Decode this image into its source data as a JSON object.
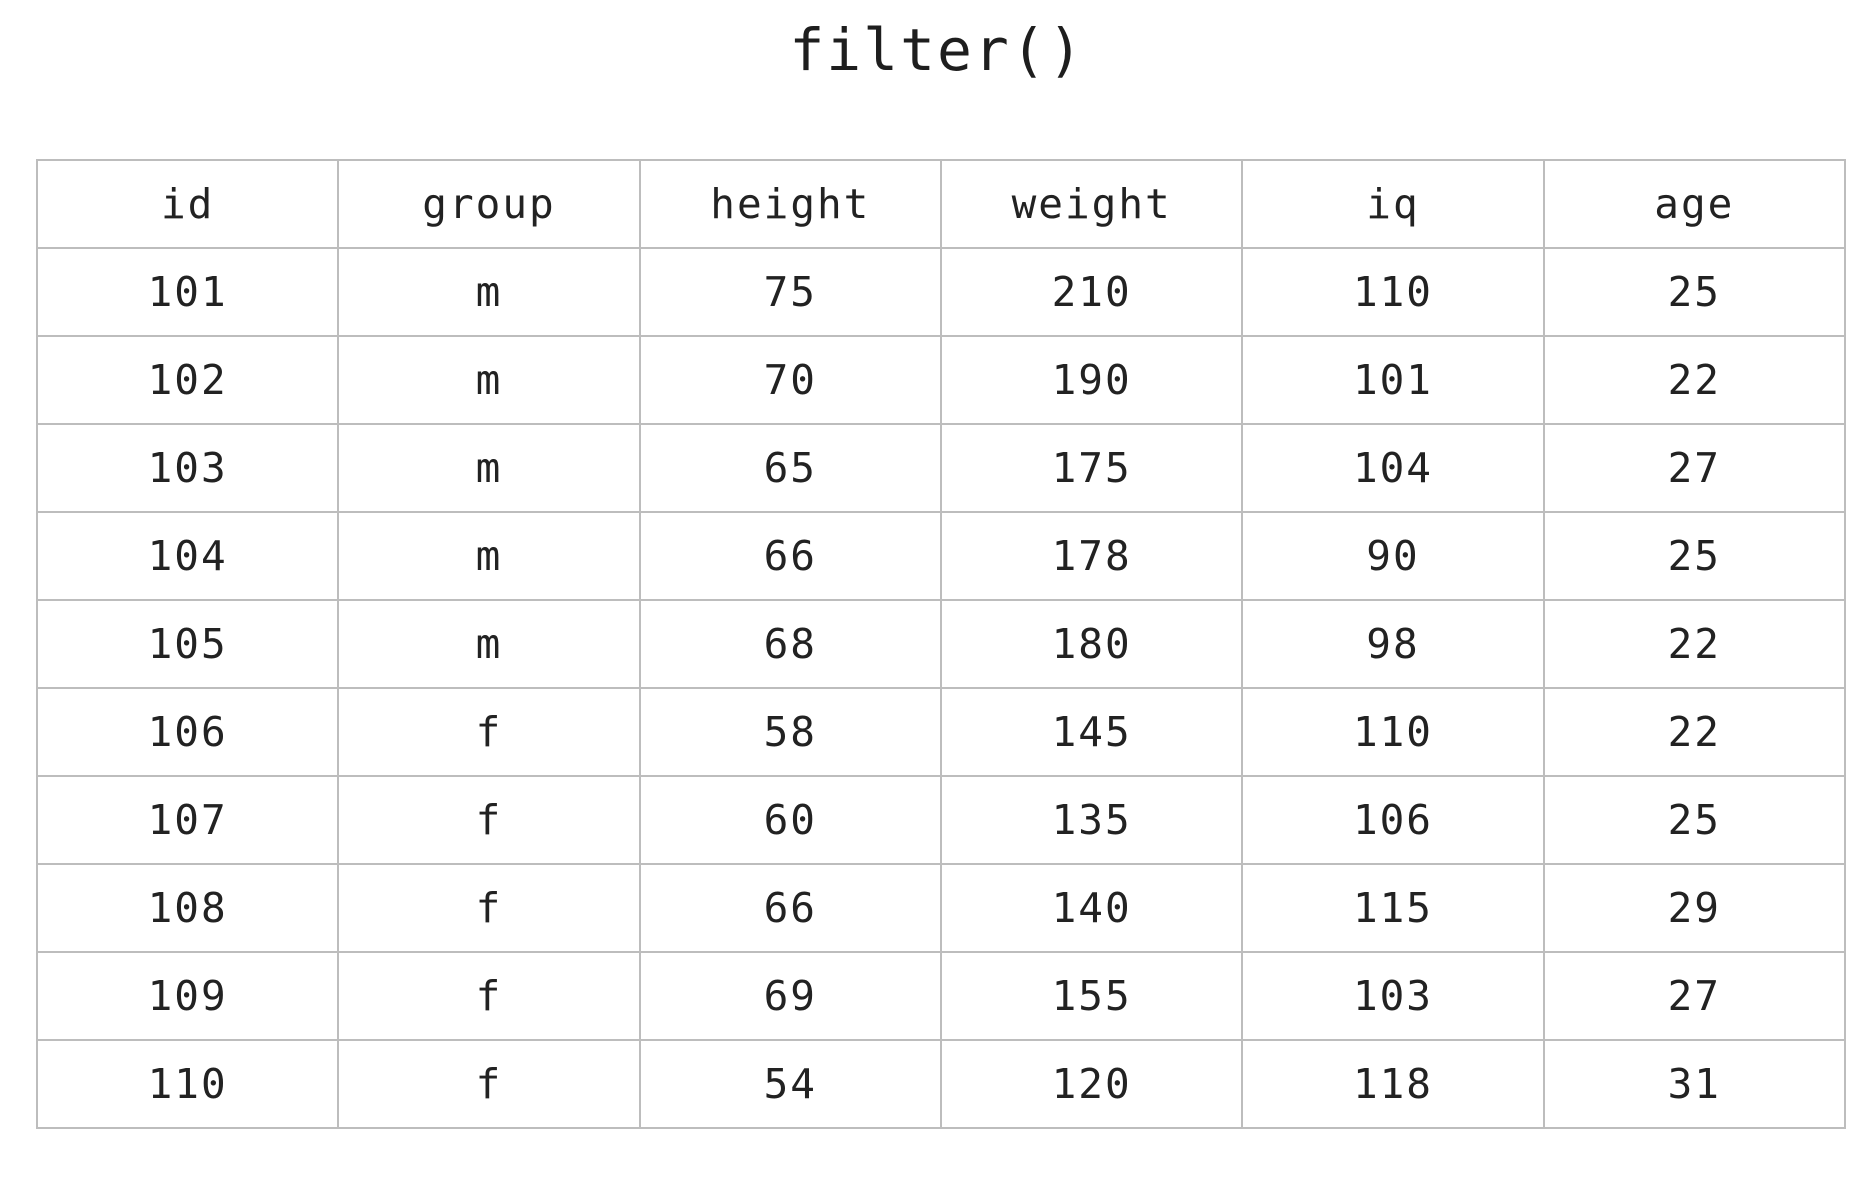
{
  "title": "filter()",
  "table": {
    "columns": [
      "id",
      "group",
      "height",
      "weight",
      "iq",
      "age"
    ],
    "rows": [
      [
        "101",
        "m",
        "75",
        "210",
        "110",
        "25"
      ],
      [
        "102",
        "m",
        "70",
        "190",
        "101",
        "22"
      ],
      [
        "103",
        "m",
        "65",
        "175",
        "104",
        "27"
      ],
      [
        "104",
        "m",
        "66",
        "178",
        "90",
        "25"
      ],
      [
        "105",
        "m",
        "68",
        "180",
        "98",
        "22"
      ],
      [
        "106",
        "f",
        "58",
        "145",
        "110",
        "22"
      ],
      [
        "107",
        "f",
        "60",
        "135",
        "106",
        "25"
      ],
      [
        "108",
        "f",
        "66",
        "140",
        "115",
        "29"
      ],
      [
        "109",
        "f",
        "69",
        "155",
        "103",
        "27"
      ],
      [
        "110",
        "f",
        "54",
        "120",
        "118",
        "31"
      ]
    ]
  },
  "colors": {
    "text": "#222222",
    "border": "#bdbdbd",
    "background": "#ffffff"
  }
}
